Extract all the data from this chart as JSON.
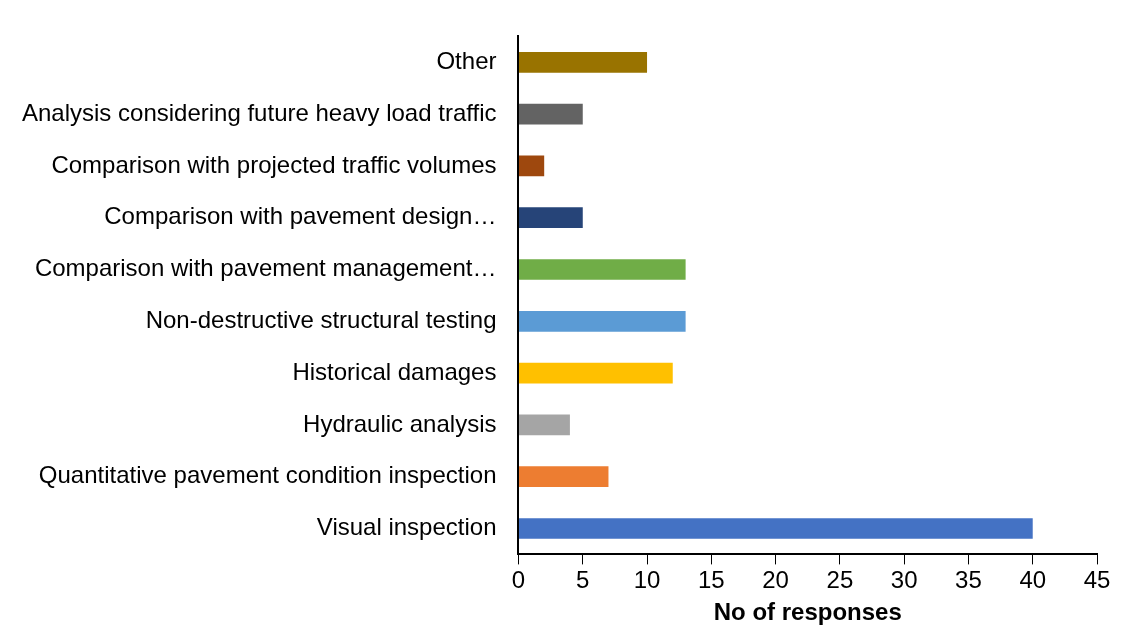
{
  "chart_data": {
    "type": "bar",
    "orientation": "horizontal",
    "xlabel": "No of responses",
    "categories": [
      "Other",
      "Analysis considering future heavy load traffic",
      "Comparison with projected traffic volumes",
      "Comparison with pavement design…",
      "Comparison with pavement management…",
      "Non-destructive structural testing",
      "Historical damages",
      "Hydraulic analysis",
      "Quantitative pavement condition inspection",
      "Visual inspection"
    ],
    "values": [
      10,
      5,
      2,
      5,
      13,
      13,
      12,
      4,
      7,
      40
    ],
    "colors": [
      "#997300",
      "#636363",
      "#9e480e",
      "#264478",
      "#70ad47",
      "#5b9bd5",
      "#ffc000",
      "#a5a5a5",
      "#ed7d31",
      "#4472c4"
    ],
    "xlim": [
      0,
      45
    ],
    "xticks": [
      0,
      5,
      10,
      15,
      20,
      25,
      30,
      35,
      40,
      45
    ],
    "grid": false,
    "legend": false
  }
}
